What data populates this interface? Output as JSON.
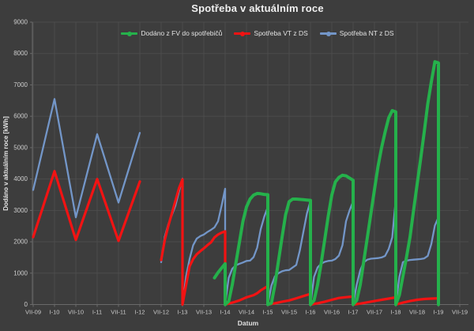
{
  "chart_data": {
    "type": "line",
    "title": "Spotřeba v aktuálním roce",
    "xlabel": "Datum",
    "ylabel": "Dodáno v aktuálním roce [kWh]",
    "ylim": [
      0,
      9000
    ],
    "ytick_step": 1000,
    "grid": true,
    "legend_position": "top-center",
    "background_color": "#3d3d3d",
    "gridline_color": "#4c4c4c",
    "axis_color": "#6a6a6a",
    "tick_label_color": "#cdcdcd",
    "x_range": [
      2009.5,
      2019.5
    ],
    "x_ticks": [
      {
        "t": 2009.5,
        "label": "VII-09"
      },
      {
        "t": 2010.0,
        "label": "I-10"
      },
      {
        "t": 2010.5,
        "label": "VII-10"
      },
      {
        "t": 2011.0,
        "label": "I-11"
      },
      {
        "t": 2011.5,
        "label": "VII-11"
      },
      {
        "t": 2012.0,
        "label": "I-12"
      },
      {
        "t": 2012.5,
        "label": "VII-12"
      },
      {
        "t": 2013.0,
        "label": "I-13"
      },
      {
        "t": 2013.5,
        "label": "VII-13"
      },
      {
        "t": 2014.0,
        "label": "I-14"
      },
      {
        "t": 2014.5,
        "label": "VII-14"
      },
      {
        "t": 2015.0,
        "label": "I-15"
      },
      {
        "t": 2015.5,
        "label": "VII-15"
      },
      {
        "t": 2016.0,
        "label": "I-16"
      },
      {
        "t": 2016.5,
        "label": "VII-16"
      },
      {
        "t": 2017.0,
        "label": "I-17"
      },
      {
        "t": 2017.5,
        "label": "VII-17"
      },
      {
        "t": 2018.0,
        "label": "I-18"
      },
      {
        "t": 2018.5,
        "label": "VII-18"
      },
      {
        "t": 2019.0,
        "label": "I-19"
      },
      {
        "t": 2019.5,
        "label": "VII-19"
      }
    ],
    "series": [
      {
        "name": "Dodáno z FV do spotřebičů",
        "key": "fv-to-appliances",
        "color": "#25b14b",
        "width": 4,
        "segments": [
          [
            [
              2013.75,
              850
            ],
            [
              2013.833,
              1020
            ],
            [
              2013.917,
              1160
            ],
            [
              2014.0,
              1300
            ],
            [
              2014.0,
              0
            ],
            [
              2014.083,
              100
            ],
            [
              2014.167,
              630
            ],
            [
              2014.25,
              1310
            ],
            [
              2014.333,
              1980
            ],
            [
              2014.417,
              2650
            ],
            [
              2014.5,
              3110
            ],
            [
              2014.583,
              3360
            ],
            [
              2014.667,
              3490
            ],
            [
              2014.75,
              3540
            ],
            [
              2014.833,
              3530
            ],
            [
              2014.917,
              3510
            ],
            [
              2015.0,
              3500
            ],
            [
              2015.0,
              0
            ],
            [
              2015.083,
              40
            ],
            [
              2015.167,
              630
            ],
            [
              2015.25,
              1390
            ],
            [
              2015.333,
              2140
            ],
            [
              2015.417,
              2860
            ],
            [
              2015.5,
              3280
            ],
            [
              2015.583,
              3360
            ],
            [
              2015.667,
              3360
            ],
            [
              2015.75,
              3350
            ],
            [
              2015.833,
              3340
            ],
            [
              2015.917,
              3330
            ],
            [
              2016.0,
              3320
            ],
            [
              2016.0,
              0
            ],
            [
              2016.083,
              130
            ],
            [
              2016.167,
              630
            ],
            [
              2016.25,
              1310
            ],
            [
              2016.333,
              2060
            ],
            [
              2016.417,
              2820
            ],
            [
              2016.5,
              3490
            ],
            [
              2016.583,
              3910
            ],
            [
              2016.667,
              4050
            ],
            [
              2016.75,
              4120
            ],
            [
              2016.833,
              4100
            ],
            [
              2016.917,
              4030
            ],
            [
              2017.0,
              3960
            ],
            [
              2017.0,
              0
            ],
            [
              2017.083,
              130
            ],
            [
              2017.167,
              630
            ],
            [
              2017.25,
              1390
            ],
            [
              2017.333,
              2140
            ],
            [
              2017.417,
              2900
            ],
            [
              2017.5,
              3660
            ],
            [
              2017.583,
              4400
            ],
            [
              2017.667,
              5000
            ],
            [
              2017.75,
              5500
            ],
            [
              2017.833,
              5950
            ],
            [
              2017.917,
              6180
            ],
            [
              2018.0,
              6140
            ],
            [
              2018.0,
              0
            ],
            [
              2018.083,
              300
            ],
            [
              2018.167,
              900
            ],
            [
              2018.25,
              1500
            ],
            [
              2018.333,
              2150
            ],
            [
              2018.417,
              3000
            ],
            [
              2018.5,
              3830
            ],
            [
              2018.583,
              4650
            ],
            [
              2018.667,
              5500
            ],
            [
              2018.75,
              6400
            ],
            [
              2018.833,
              7100
            ],
            [
              2018.917,
              7740
            ],
            [
              2019.0,
              7700
            ],
            [
              2019.0,
              0
            ]
          ]
        ]
      },
      {
        "name": "Spotřeba VT z DS",
        "key": "vt-from-grid",
        "color": "#f21313",
        "width": 3.2,
        "segments": [
          [
            [
              2009.5,
              2150
            ],
            [
              2010.0,
              4250
            ],
            [
              2010.5,
              2060
            ],
            [
              2011.0,
              4000
            ],
            [
              2011.5,
              2030
            ],
            [
              2012.0,
              3920
            ]
          ],
          [
            [
              2012.5,
              1420
            ],
            [
              2012.583,
              2050
            ],
            [
              2012.667,
              2500
            ],
            [
              2012.75,
              2900
            ],
            [
              2012.833,
              3300
            ],
            [
              2012.917,
              3700
            ],
            [
              2013.0,
              3990
            ],
            [
              2013.0,
              0
            ],
            [
              2013.083,
              620
            ],
            [
              2013.167,
              1220
            ],
            [
              2013.25,
              1450
            ],
            [
              2013.333,
              1600
            ],
            [
              2013.417,
              1700
            ],
            [
              2013.5,
              1790
            ],
            [
              2013.583,
              1890
            ],
            [
              2013.667,
              1980
            ],
            [
              2013.75,
              2140
            ],
            [
              2013.833,
              2230
            ],
            [
              2013.917,
              2290
            ],
            [
              2014.0,
              2330
            ],
            [
              2014.0,
              0
            ],
            [
              2014.167,
              60
            ],
            [
              2014.333,
              130
            ],
            [
              2014.5,
              230
            ],
            [
              2014.667,
              300
            ],
            [
              2014.75,
              360
            ],
            [
              2014.833,
              450
            ],
            [
              2014.917,
              520
            ],
            [
              2015.0,
              585
            ],
            [
              2015.0,
              0
            ],
            [
              2015.167,
              40
            ],
            [
              2015.333,
              90
            ],
            [
              2015.5,
              130
            ],
            [
              2015.667,
              200
            ],
            [
              2015.833,
              270
            ],
            [
              2016.0,
              340
            ],
            [
              2016.0,
              0
            ],
            [
              2016.167,
              40
            ],
            [
              2016.333,
              90
            ],
            [
              2016.5,
              150
            ],
            [
              2016.667,
              210
            ],
            [
              2016.833,
              235
            ],
            [
              2017.0,
              255
            ],
            [
              2017.0,
              0
            ],
            [
              2017.167,
              30
            ],
            [
              2017.333,
              70
            ],
            [
              2017.5,
              110
            ],
            [
              2017.667,
              150
            ],
            [
              2017.833,
              190
            ],
            [
              2018.0,
              230
            ],
            [
              2018.0,
              0
            ],
            [
              2018.167,
              60
            ],
            [
              2018.333,
              110
            ],
            [
              2018.5,
              150
            ],
            [
              2018.667,
              175
            ],
            [
              2018.833,
              190
            ],
            [
              2019.0,
              200
            ],
            [
              2019.0,
              0
            ]
          ]
        ]
      },
      {
        "name": "Spotřeba NT z DS",
        "key": "nt-from-grid",
        "color": "#7396c8",
        "width": 2.3,
        "segments": [
          [
            [
              2009.5,
              3650
            ],
            [
              2010.0,
              6550
            ],
            [
              2010.5,
              2780
            ],
            [
              2011.0,
              5430
            ],
            [
              2011.5,
              3250
            ],
            [
              2012.0,
              5470
            ]
          ],
          [
            [
              2012.5,
              1350
            ],
            [
              2012.583,
              2150
            ],
            [
              2012.667,
              2550
            ],
            [
              2012.75,
              2850
            ],
            [
              2012.833,
              3150
            ],
            [
              2012.917,
              3600
            ],
            [
              2013.0,
              4010
            ],
            [
              2013.0,
              0
            ],
            [
              2013.083,
              880
            ],
            [
              2013.167,
              1450
            ],
            [
              2013.25,
              1890
            ],
            [
              2013.333,
              2100
            ],
            [
              2013.417,
              2180
            ],
            [
              2013.5,
              2230
            ],
            [
              2013.583,
              2310
            ],
            [
              2013.667,
              2380
            ],
            [
              2013.75,
              2460
            ],
            [
              2013.833,
              2650
            ],
            [
              2013.917,
              3150
            ],
            [
              2014.0,
              3690
            ],
            [
              2014.0,
              0
            ],
            [
              2014.083,
              850
            ],
            [
              2014.167,
              1140
            ],
            [
              2014.25,
              1250
            ],
            [
              2014.333,
              1300
            ],
            [
              2014.417,
              1340
            ],
            [
              2014.5,
              1390
            ],
            [
              2014.583,
              1400
            ],
            [
              2014.667,
              1510
            ],
            [
              2014.75,
              1810
            ],
            [
              2014.833,
              2400
            ],
            [
              2014.917,
              2800
            ],
            [
              2015.0,
              3110
            ],
            [
              2015.0,
              0
            ],
            [
              2015.083,
              600
            ],
            [
              2015.167,
              900
            ],
            [
              2015.25,
              1000
            ],
            [
              2015.333,
              1060
            ],
            [
              2015.417,
              1090
            ],
            [
              2015.5,
              1100
            ],
            [
              2015.583,
              1180
            ],
            [
              2015.667,
              1260
            ],
            [
              2015.75,
              1720
            ],
            [
              2015.833,
              2310
            ],
            [
              2015.917,
              2900
            ],
            [
              2016.0,
              3300
            ],
            [
              2016.0,
              0
            ],
            [
              2016.083,
              880
            ],
            [
              2016.167,
              1180
            ],
            [
              2016.25,
              1300
            ],
            [
              2016.333,
              1360
            ],
            [
              2016.417,
              1390
            ],
            [
              2016.5,
              1400
            ],
            [
              2016.583,
              1450
            ],
            [
              2016.667,
              1560
            ],
            [
              2016.75,
              1890
            ],
            [
              2016.833,
              2650
            ],
            [
              2016.917,
              3000
            ],
            [
              2017.0,
              3280
            ],
            [
              2017.0,
              0
            ],
            [
              2017.083,
              630
            ],
            [
              2017.167,
              1090
            ],
            [
              2017.25,
              1350
            ],
            [
              2017.333,
              1430
            ],
            [
              2017.417,
              1460
            ],
            [
              2017.5,
              1470
            ],
            [
              2017.583,
              1480
            ],
            [
              2017.667,
              1500
            ],
            [
              2017.75,
              1550
            ],
            [
              2017.833,
              1770
            ],
            [
              2017.917,
              2140
            ],
            [
              2018.0,
              3360
            ],
            [
              2018.0,
              0
            ],
            [
              2018.083,
              880
            ],
            [
              2018.167,
              1350
            ],
            [
              2018.25,
              1400
            ],
            [
              2018.333,
              1420
            ],
            [
              2018.417,
              1430
            ],
            [
              2018.5,
              1440
            ],
            [
              2018.583,
              1450
            ],
            [
              2018.667,
              1470
            ],
            [
              2018.75,
              1550
            ],
            [
              2018.833,
              1930
            ],
            [
              2018.917,
              2520
            ],
            [
              2019.0,
              2780
            ],
            [
              2019.0,
              0
            ]
          ]
        ]
      }
    ]
  }
}
